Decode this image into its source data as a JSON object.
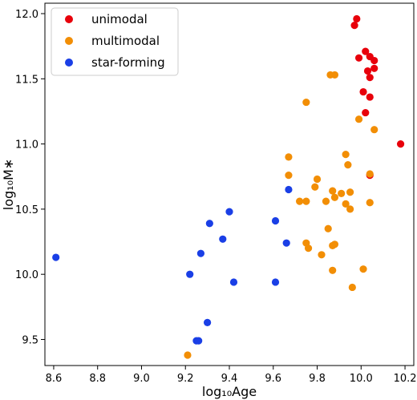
{
  "chart_data": {
    "type": "scatter",
    "xlabel": "log₁₀Age",
    "ylabel": "log₁₀M∗",
    "xlim": [
      8.56,
      10.24
    ],
    "ylim": [
      9.3,
      12.08
    ],
    "x_ticks": [
      8.6,
      8.8,
      9.0,
      9.2,
      9.4,
      9.6,
      9.8,
      10.0,
      10.2
    ],
    "x_tick_labels": [
      "8.6",
      "8.8",
      "9.0",
      "9.2",
      "9.4",
      "9.6",
      "9.8",
      "10.0",
      "10.2"
    ],
    "y_ticks": [
      9.5,
      10.0,
      10.5,
      11.0,
      11.5,
      12.0
    ],
    "y_tick_labels": [
      "9.5",
      "10.0",
      "10.5",
      "11.0",
      "11.5",
      "12.0"
    ],
    "grid": false,
    "legend_position": "top-left",
    "series": [
      {
        "name": "unimodal",
        "color": "#e8000b",
        "points": [
          [
            9.98,
            11.96
          ],
          [
            9.97,
            11.91
          ],
          [
            10.02,
            11.71
          ],
          [
            9.99,
            11.66
          ],
          [
            10.04,
            11.67
          ],
          [
            10.06,
            11.64
          ],
          [
            10.06,
            11.58
          ],
          [
            10.03,
            11.56
          ],
          [
            10.04,
            11.51
          ],
          [
            10.01,
            11.4
          ],
          [
            10.04,
            11.36
          ],
          [
            10.02,
            11.24
          ],
          [
            10.18,
            11.0
          ],
          [
            10.04,
            10.76
          ]
        ]
      },
      {
        "name": "multimodal",
        "color": "#f28e05",
        "points": [
          [
            9.86,
            11.53
          ],
          [
            9.88,
            11.53
          ],
          [
            9.75,
            11.32
          ],
          [
            9.99,
            11.19
          ],
          [
            10.06,
            11.11
          ],
          [
            9.67,
            10.9
          ],
          [
            9.93,
            10.92
          ],
          [
            9.94,
            10.84
          ],
          [
            10.04,
            10.77
          ],
          [
            9.67,
            10.76
          ],
          [
            9.8,
            10.73
          ],
          [
            9.79,
            10.67
          ],
          [
            9.87,
            10.64
          ],
          [
            9.91,
            10.62
          ],
          [
            9.95,
            10.63
          ],
          [
            9.88,
            10.59
          ],
          [
            9.72,
            10.56
          ],
          [
            9.75,
            10.56
          ],
          [
            9.84,
            10.56
          ],
          [
            9.93,
            10.54
          ],
          [
            10.04,
            10.55
          ],
          [
            9.95,
            10.5
          ],
          [
            9.85,
            10.35
          ],
          [
            9.75,
            10.24
          ],
          [
            9.87,
            10.22
          ],
          [
            9.88,
            10.23
          ],
          [
            9.76,
            10.2
          ],
          [
            9.82,
            10.15
          ],
          [
            10.01,
            10.04
          ],
          [
            9.87,
            10.03
          ],
          [
            9.96,
            9.9
          ],
          [
            9.21,
            9.38
          ]
        ]
      },
      {
        "name": "star-forming",
        "color": "#1a3fe6",
        "points": [
          [
            8.61,
            10.13
          ],
          [
            9.22,
            10.0
          ],
          [
            9.27,
            10.16
          ],
          [
            9.31,
            10.39
          ],
          [
            9.37,
            10.27
          ],
          [
            9.4,
            10.48
          ],
          [
            9.42,
            9.94
          ],
          [
            9.3,
            9.63
          ],
          [
            9.25,
            9.49
          ],
          [
            9.26,
            9.49
          ],
          [
            9.61,
            10.41
          ],
          [
            9.61,
            9.94
          ],
          [
            9.66,
            10.24
          ],
          [
            9.67,
            10.65
          ]
        ]
      }
    ]
  }
}
